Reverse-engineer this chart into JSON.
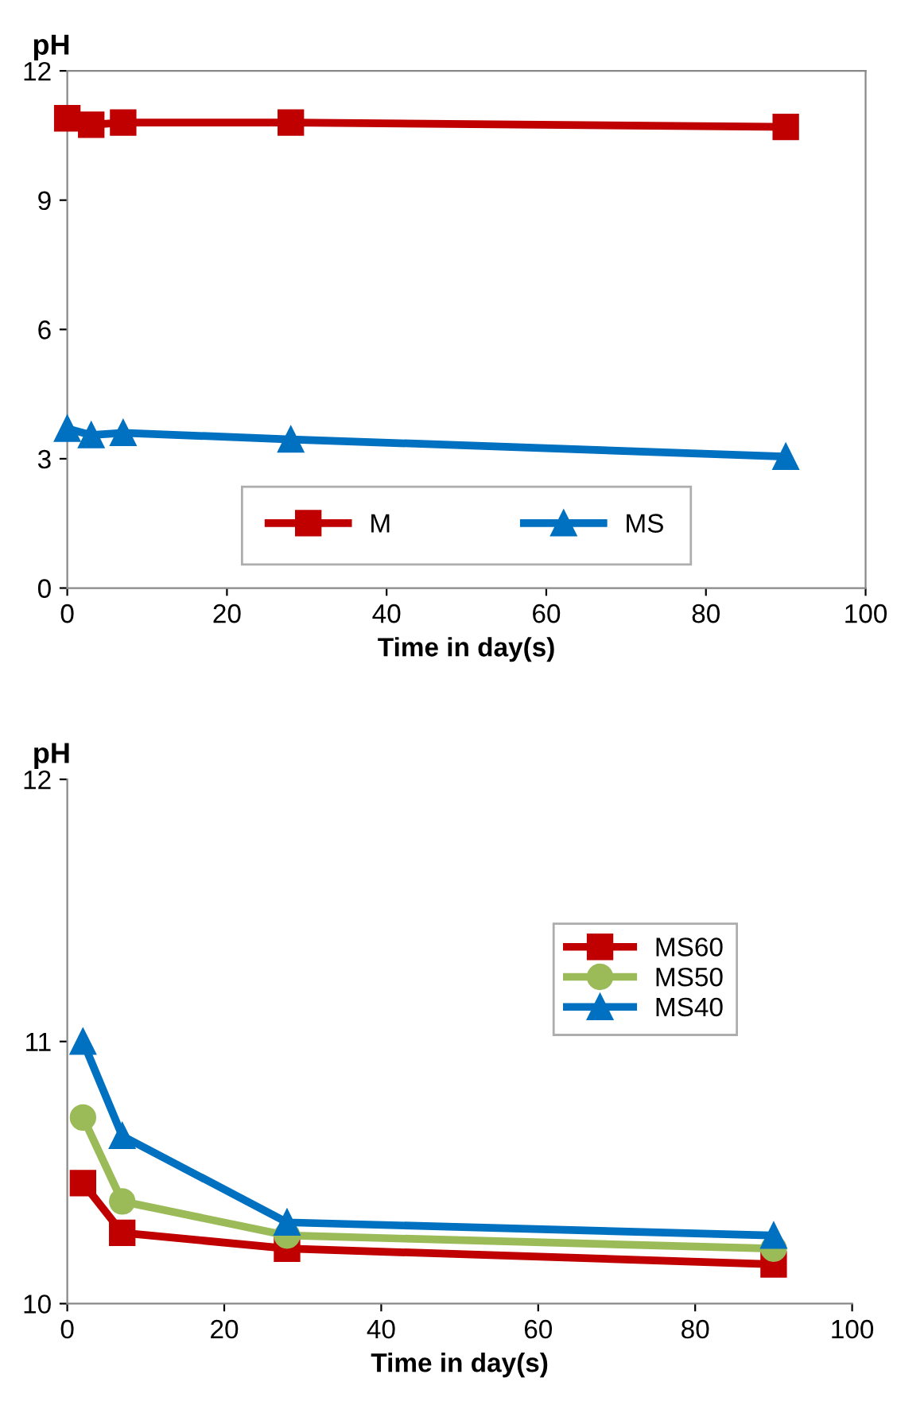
{
  "chart_data": [
    {
      "type": "line",
      "ylabel": "pH",
      "xlabel": "Time in day(s)",
      "xlim": [
        0,
        100
      ],
      "xticks": [
        0,
        20,
        40,
        60,
        80,
        100
      ],
      "ylim": [
        0,
        12
      ],
      "yticks": [
        0,
        3,
        6,
        9,
        12
      ],
      "legend": "bottom",
      "grid": false,
      "series": [
        {
          "name": "M",
          "color": "#c00000",
          "marker": "square",
          "x": [
            0,
            3,
            7,
            28,
            90
          ],
          "values": [
            10.9,
            10.75,
            10.8,
            10.8,
            10.7
          ]
        },
        {
          "name": "MS",
          "color": "#0070c0",
          "marker": "triangle",
          "x": [
            0,
            3,
            7,
            28,
            90
          ],
          "values": [
            3.7,
            3.55,
            3.6,
            3.45,
            3.05
          ]
        }
      ]
    },
    {
      "type": "line",
      "ylabel": "pH",
      "xlabel": "Time in day(s)",
      "xlim": [
        0,
        100
      ],
      "xticks": [
        0,
        20,
        40,
        60,
        80,
        100
      ],
      "ylim": [
        10,
        12
      ],
      "yticks": [
        10,
        11,
        12
      ],
      "legend": "top right",
      "grid": false,
      "series": [
        {
          "name": "MS60",
          "color": "#c00000",
          "marker": "square",
          "x": [
            2,
            7,
            28,
            90
          ],
          "values": [
            10.46,
            10.27,
            10.21,
            10.15
          ]
        },
        {
          "name": "MS50",
          "color": "#9bbb59",
          "marker": "circle",
          "x": [
            2,
            7,
            28,
            90
          ],
          "values": [
            10.71,
            10.39,
            10.26,
            10.21
          ]
        },
        {
          "name": "MS40",
          "color": "#0070c0",
          "marker": "triangle",
          "x": [
            2,
            7,
            28,
            90
          ],
          "values": [
            11.0,
            10.64,
            10.31,
            10.26
          ]
        }
      ]
    }
  ]
}
